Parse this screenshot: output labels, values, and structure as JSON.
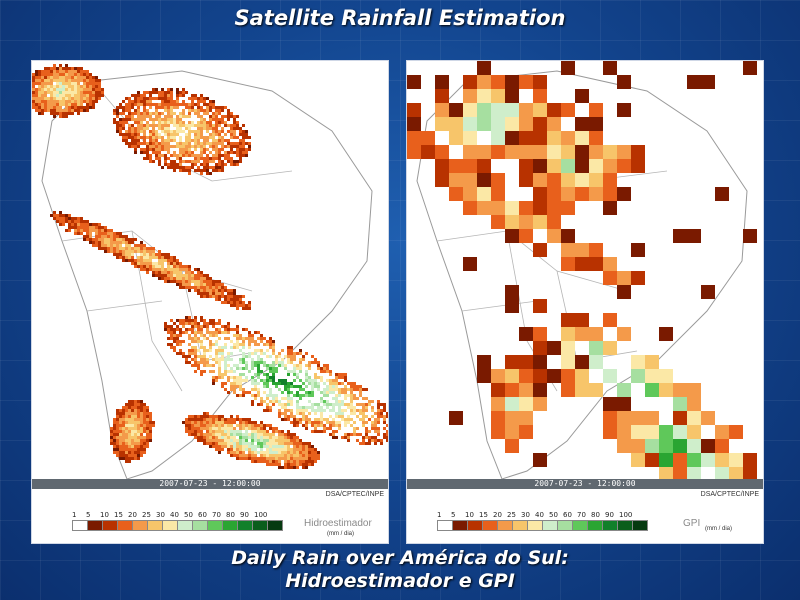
{
  "slide": {
    "title": "Satellite Rainfall Estimation",
    "caption_line1": "Daily Rain over América do Sul:",
    "caption_line2": "Hidroestimador e GPI"
  },
  "panels": [
    {
      "product": "Hidroestimador",
      "unit": "(mm / dia)",
      "timestamp": "2007-07-23 - 12:00:00",
      "credit": "DSA/CPTEC/INPE"
    },
    {
      "product": "GPI",
      "unit": "(mm / dia)",
      "timestamp": "2007-07-23 - 12:00:00",
      "credit": "DSA/CPTEC/INPE"
    }
  ],
  "legend": {
    "values": [
      "1",
      "5",
      "10",
      "15",
      "20",
      "25",
      "30",
      "40",
      "50",
      "60",
      "70",
      "80",
      "90",
      "100"
    ],
    "colors": [
      "#ffffff",
      "#7a1a00",
      "#b83200",
      "#e8601c",
      "#f49a4a",
      "#f7c56a",
      "#fbe8a6",
      "#cfeecb",
      "#a6dfa0",
      "#5fc85a",
      "#2aa532",
      "#11802a",
      "#0a5e1c",
      "#063a10"
    ]
  }
}
